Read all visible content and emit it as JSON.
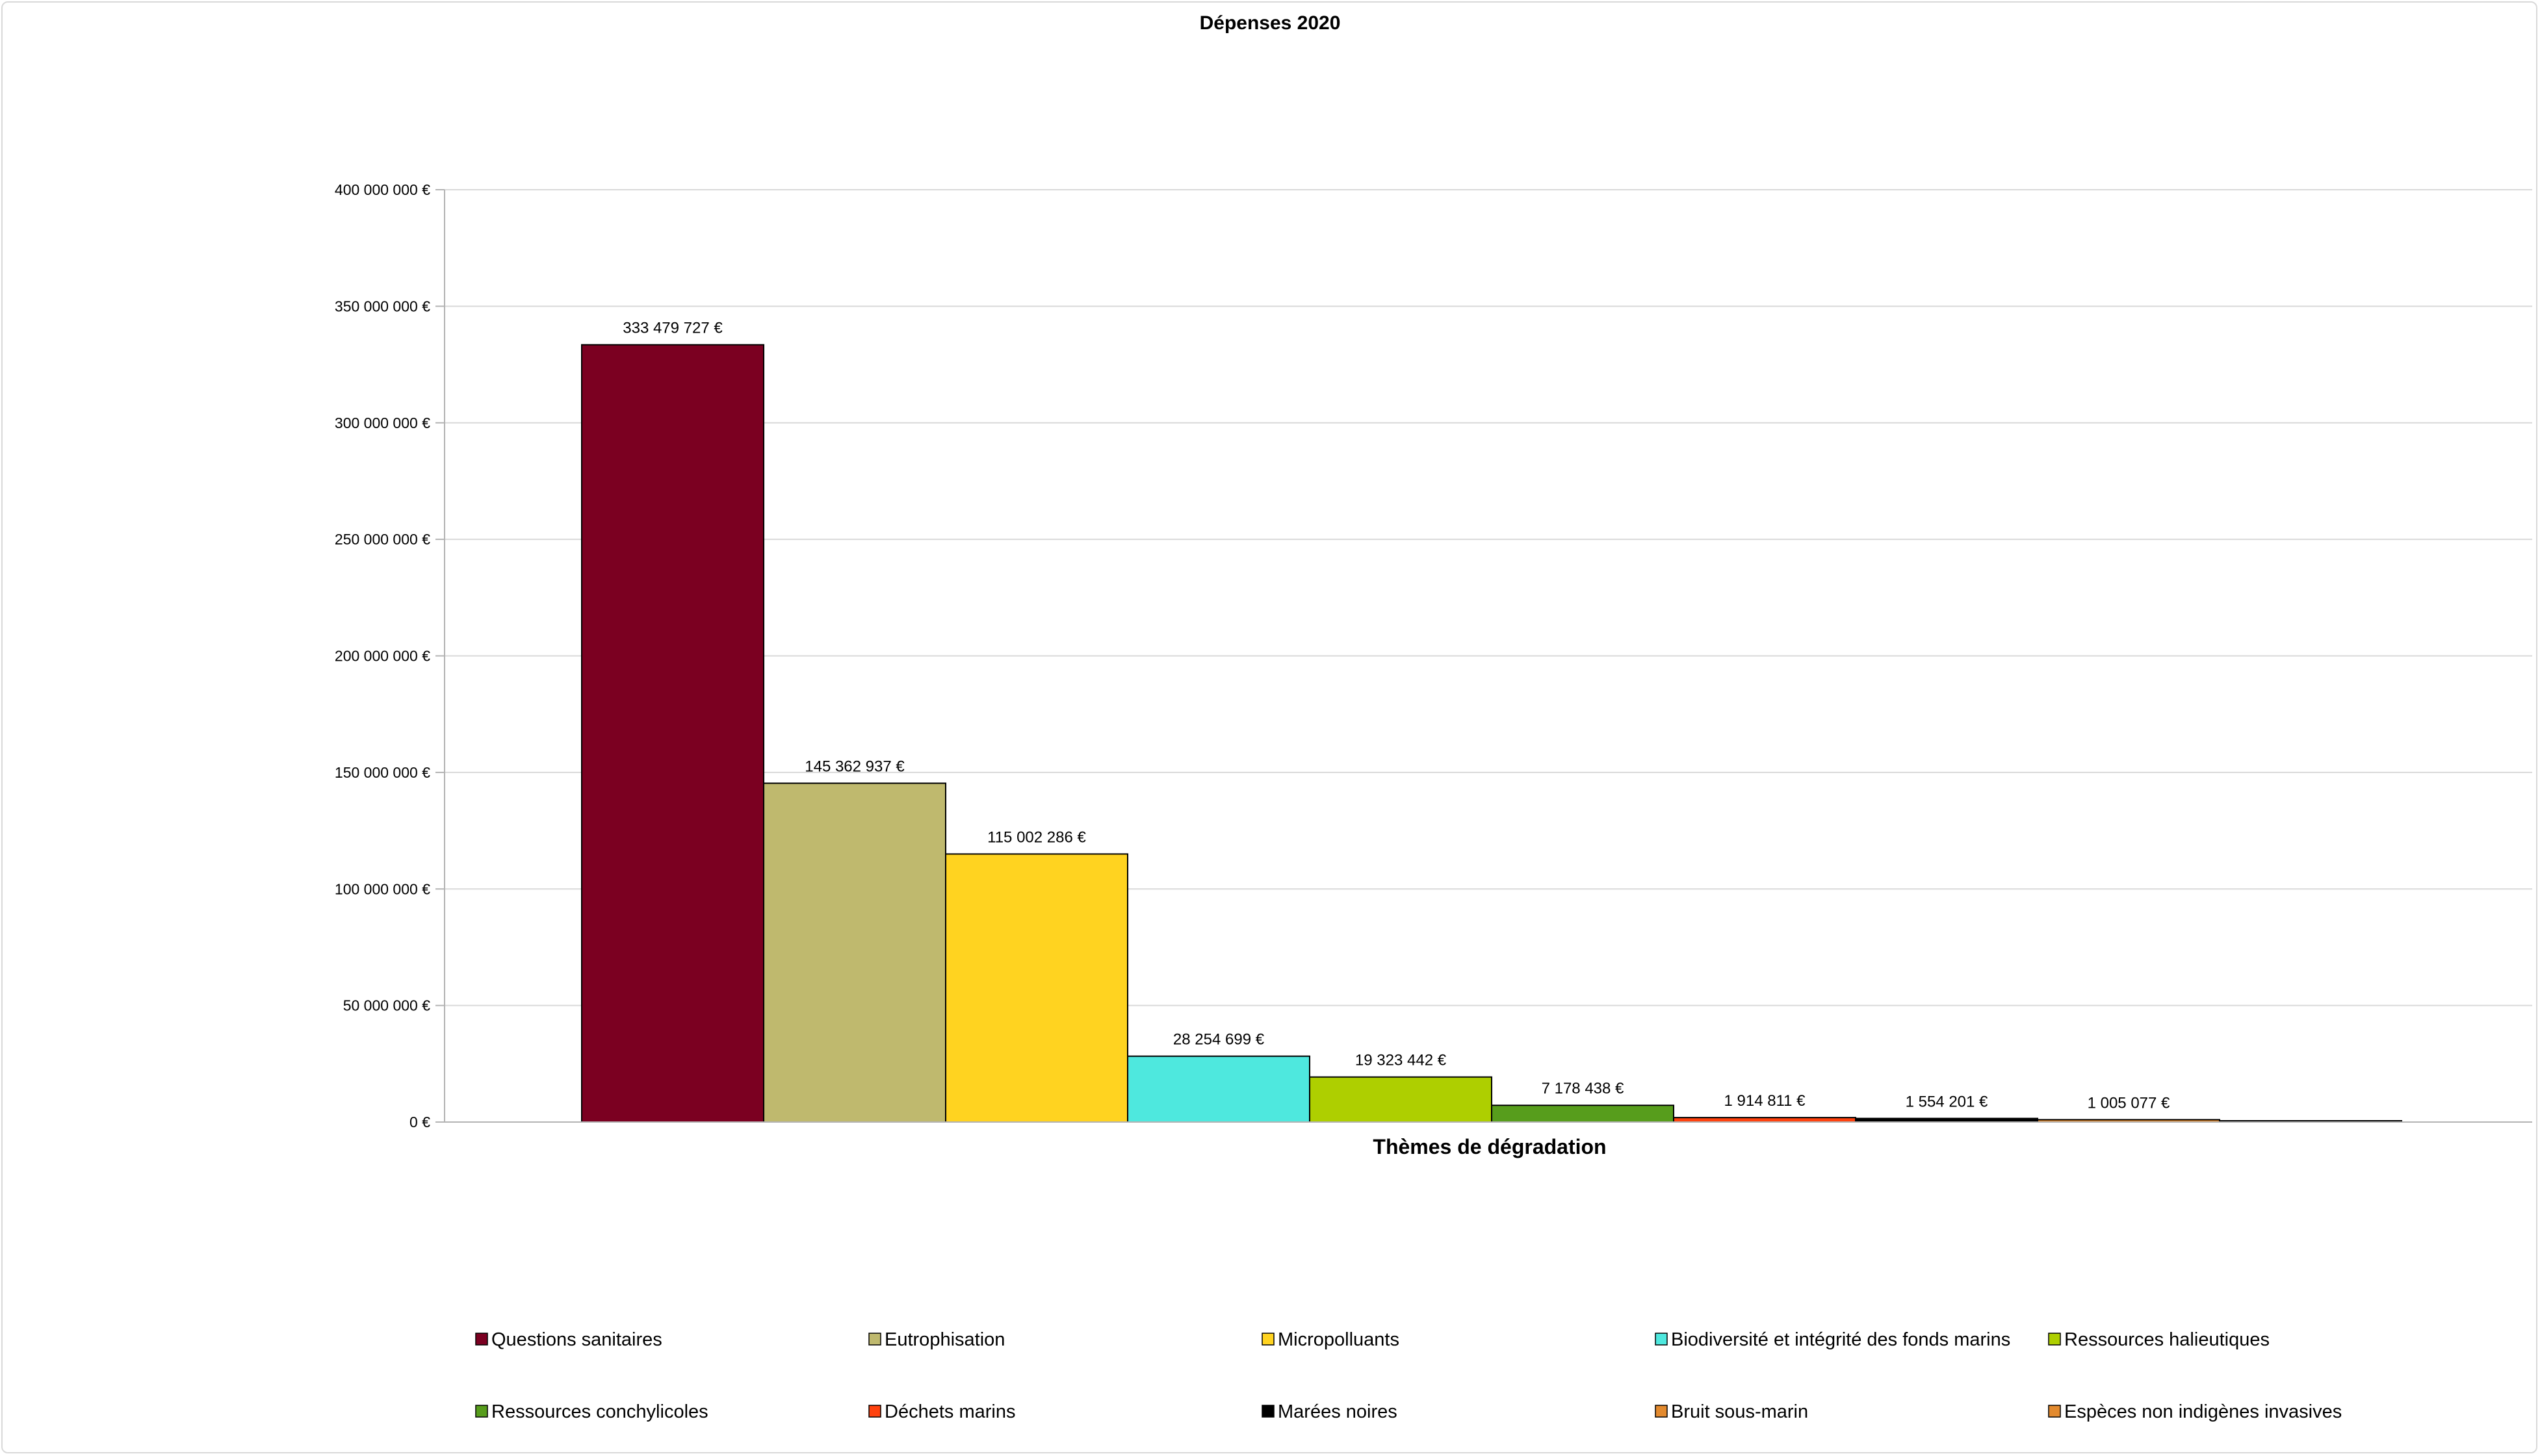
{
  "chart_data": {
    "type": "bar",
    "title": "Dépenses 2020",
    "xlabel": "Thèmes de dégradation",
    "ylabel": "",
    "ylim": [
      0,
      400000000
    ],
    "yticks": [
      0,
      50000000,
      100000000,
      150000000,
      200000000,
      250000000,
      300000000,
      350000000,
      400000000
    ],
    "ytick_labels": [
      "0 €",
      "50 000 000 €",
      "100 000 000 €",
      "150 000 000 €",
      "200 000 000 €",
      "250 000 000 €",
      "300 000 000 €",
      "350 000 000 €",
      "400 000 000 €"
    ],
    "grid": true,
    "legend_position": "bottom",
    "series": [
      {
        "name": "Questions sanitaires",
        "value": 333479727,
        "label": "333 479 727 €",
        "color": "#7b0021"
      },
      {
        "name": "Eutrophisation",
        "value": 145362937,
        "label": "145 362 937 €",
        "color": "#bfb96e"
      },
      {
        "name": "Micropolluants",
        "value": 115002286,
        "label": "115 002 286 €",
        "color": "#ffd320"
      },
      {
        "name": "Biodiversité et intégrité des fonds marins",
        "value": 28254699,
        "label": "28 254 699 €",
        "color": "#4ee8de"
      },
      {
        "name": "Ressources halieutiques",
        "value": 19323442,
        "label": "19 323 442 €",
        "color": "#aecf00"
      },
      {
        "name": "Ressources conchylicoles",
        "value": 7178438,
        "label": "7 178 438 €",
        "color": "#579d1c"
      },
      {
        "name": "Déchets marins",
        "value": 1914811,
        "label": "1 914 811 €",
        "color": "#ff420e"
      },
      {
        "name": "Marées noires",
        "value": 1554201,
        "label": "1 554 201 €",
        "color": "#000000"
      },
      {
        "name": "Bruit sous-marin",
        "value": 1005077,
        "label": "1 005 077 €",
        "color": "#e38a2e"
      },
      {
        "name": "Espèces non indigènes invasives",
        "value": 550000,
        "label": "",
        "color": "#e38a2e"
      }
    ]
  }
}
